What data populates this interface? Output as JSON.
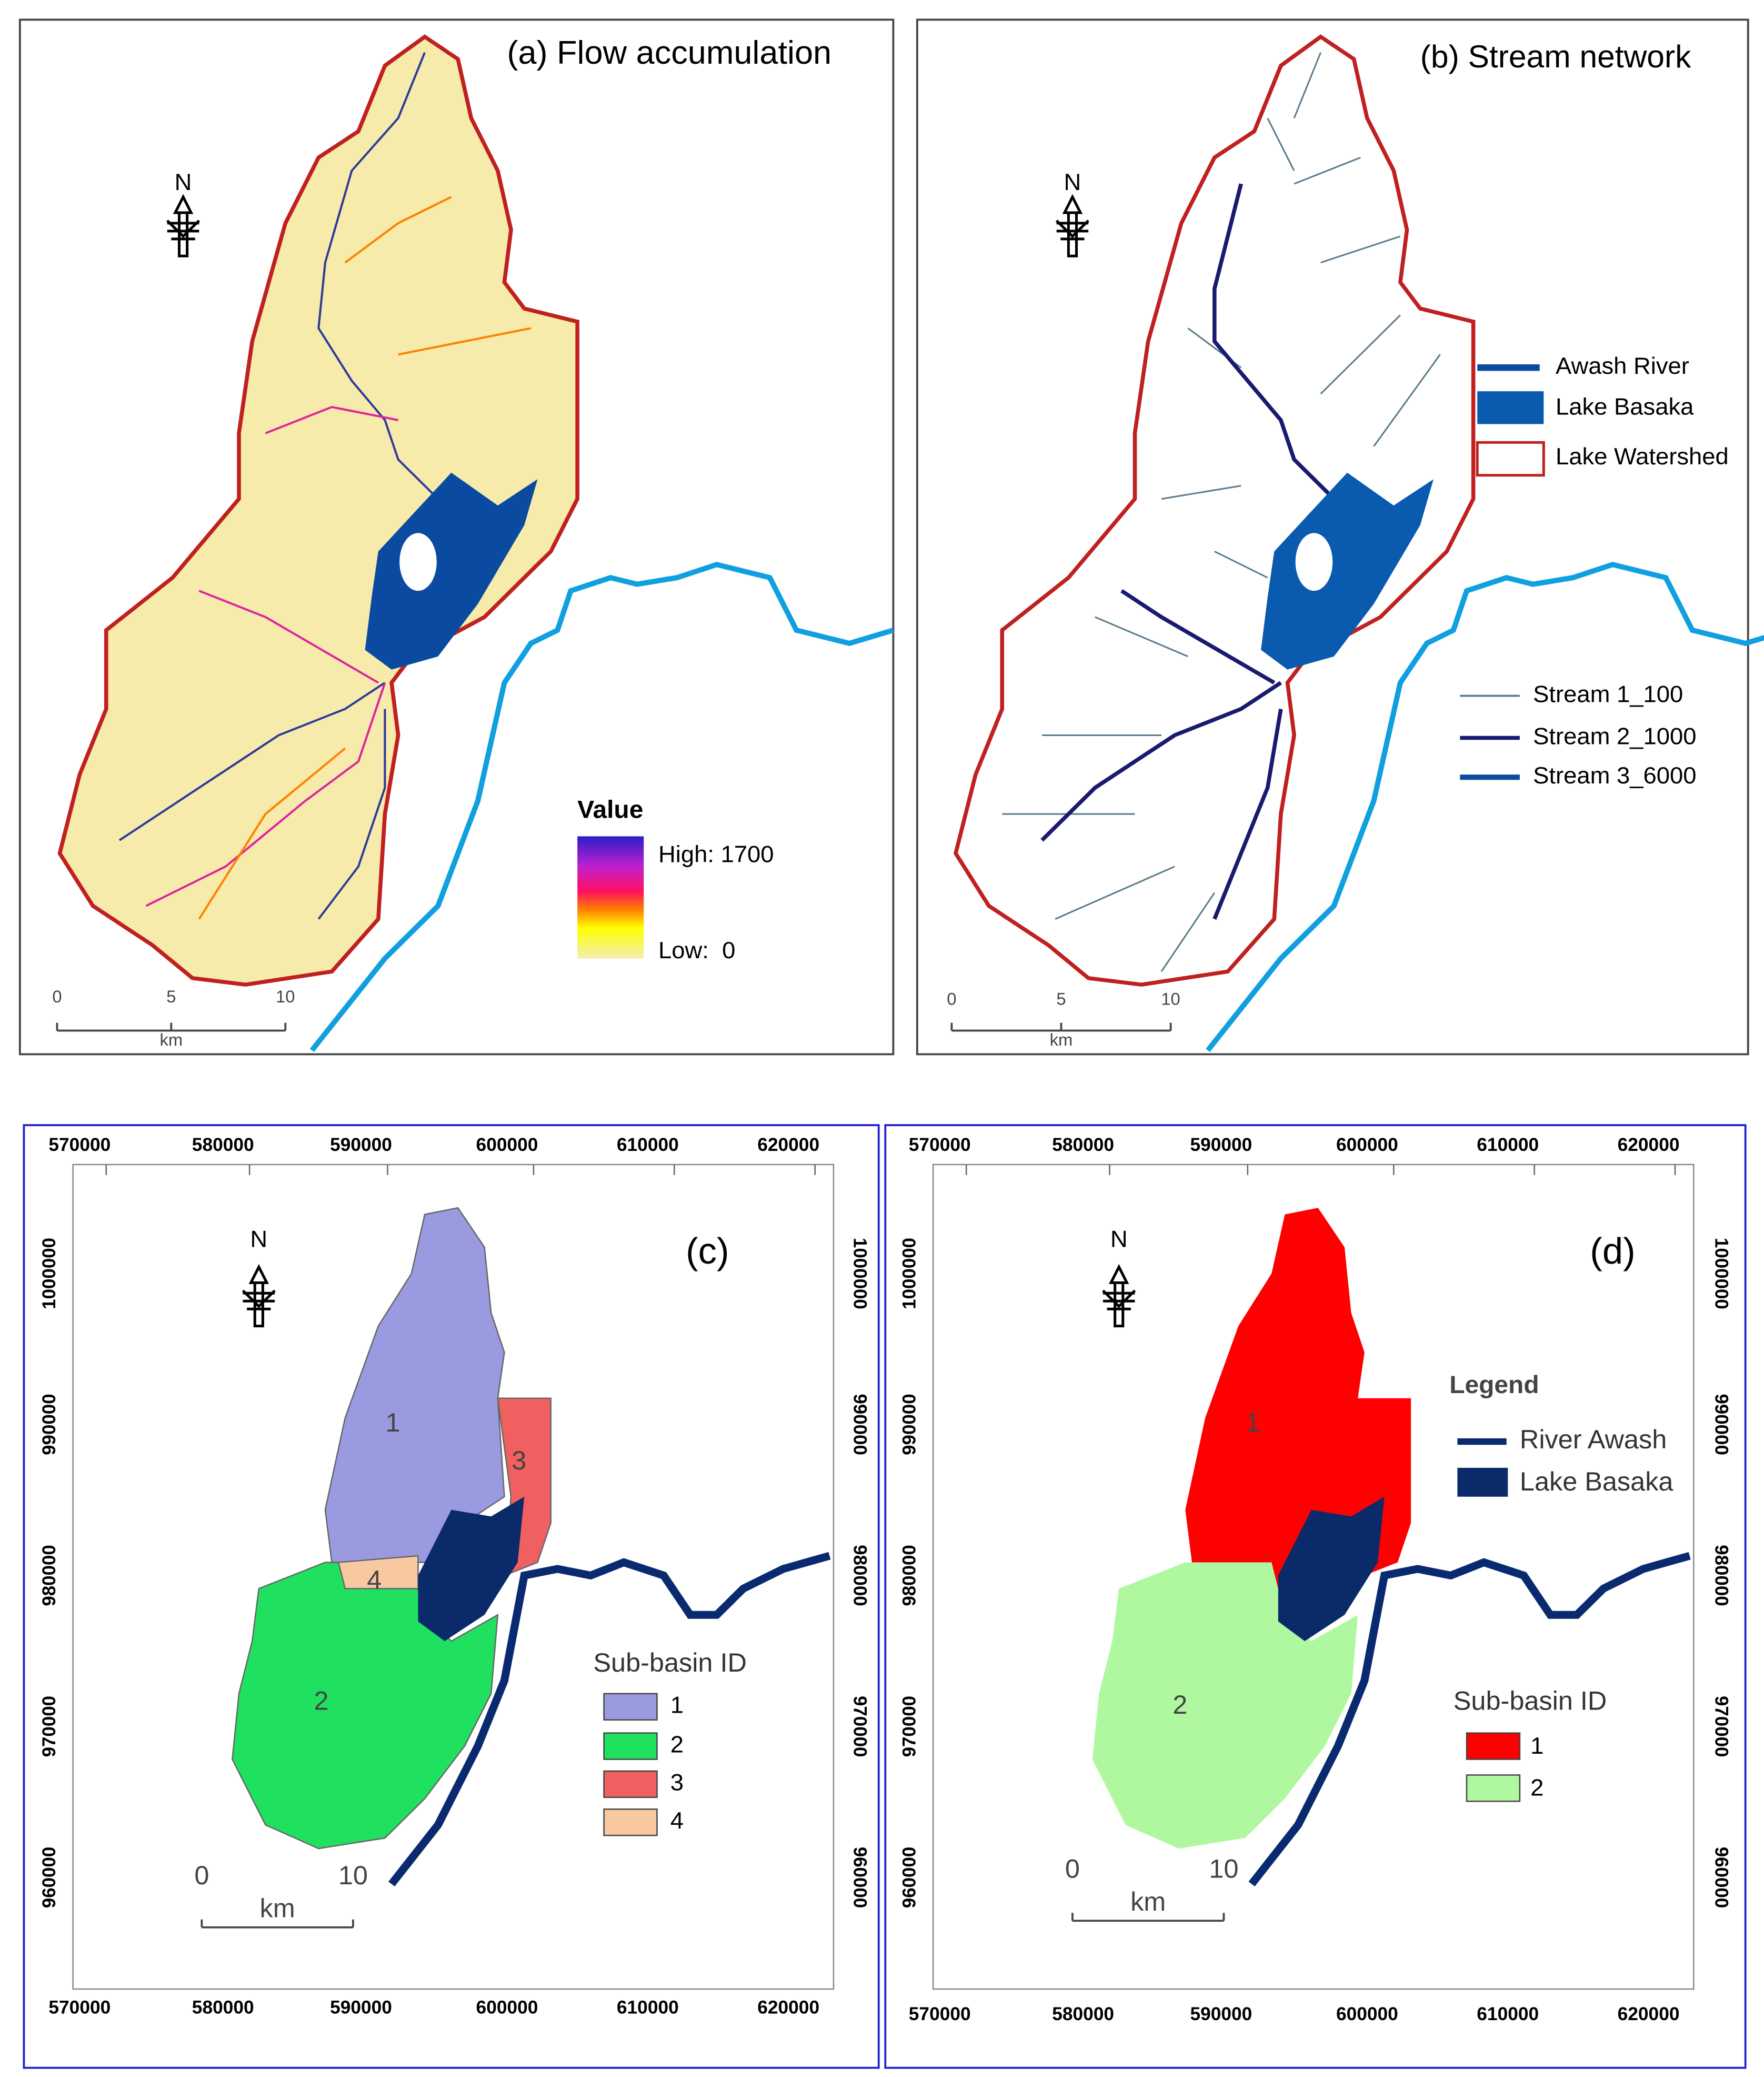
{
  "panel_a": {
    "title": "(a) Flow accumulation",
    "north": "N",
    "legend": {
      "title": "Value",
      "high": "High: 1700",
      "low": "Low:  0"
    },
    "scale": {
      "ticks": [
        0,
        5,
        10
      ],
      "unit": "km"
    }
  },
  "panel_b": {
    "title": "(b) Stream network",
    "north": "N",
    "legend": {
      "items": [
        "Awash River",
        "Lake Basaka",
        "Lake Watershed"
      ],
      "streams": [
        "Stream 1_100",
        "Stream 2_1000",
        "Stream 3_6000"
      ]
    },
    "scale": {
      "ticks": [
        0,
        5,
        10
      ],
      "unit": "km"
    }
  },
  "panel_c": {
    "title": "(c)",
    "north": "N",
    "basin_labels": [
      1,
      2,
      3,
      4
    ],
    "legend": {
      "title": "Sub-basin ID",
      "items": [
        1,
        2,
        3,
        4
      ]
    },
    "scale": {
      "ticks": [
        0,
        10
      ],
      "unit": "km"
    },
    "x_ticks": [
      570000,
      580000,
      590000,
      600000,
      610000,
      620000
    ],
    "y_ticks": [
      960000,
      970000,
      980000,
      990000,
      1000000
    ]
  },
  "panel_d": {
    "title": "(d)",
    "north": "N",
    "basin_labels": [
      1,
      2
    ],
    "legend": {
      "title": "Legend",
      "items": [
        "River Awash",
        "Lake Basaka"
      ],
      "subbasin_title": "Sub-basin ID",
      "subbasins": [
        1,
        2
      ]
    },
    "scale": {
      "ticks": [
        0,
        10
      ],
      "unit": "km"
    },
    "x_ticks": [
      570000,
      580000,
      590000,
      600000,
      610000,
      620000
    ],
    "y_ticks": [
      960000,
      970000,
      980000,
      990000,
      1000000
    ]
  }
}
